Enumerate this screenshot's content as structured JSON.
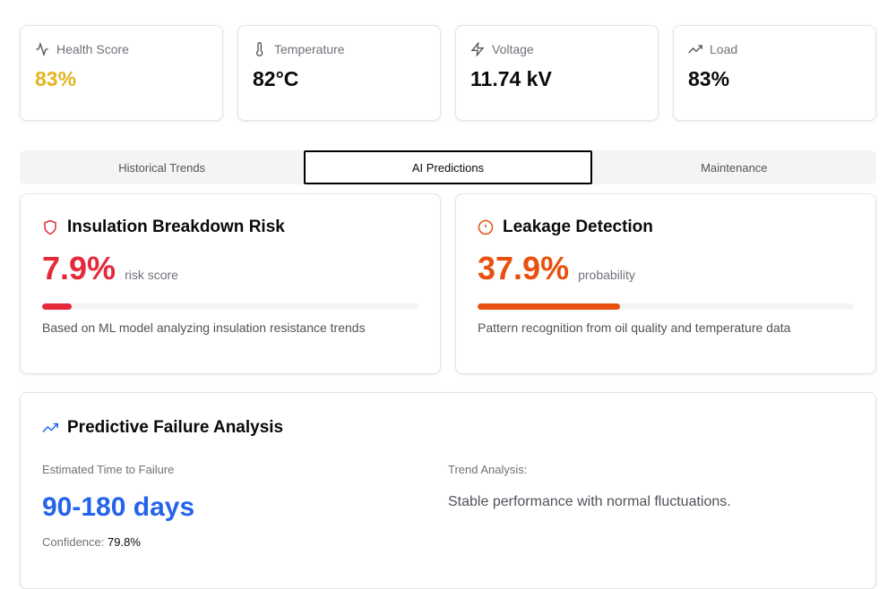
{
  "metrics": [
    {
      "label": "Health Score",
      "value": "83%",
      "icon": "activity-icon",
      "color": "#e5b322"
    },
    {
      "label": "Temperature",
      "value": "82°C",
      "icon": "thermometer-icon",
      "color": "#0a0a0a"
    },
    {
      "label": "Voltage",
      "value": "11.74 kV",
      "icon": "zap-icon",
      "color": "#0a0a0a"
    },
    {
      "label": "Load",
      "value": "83%",
      "icon": "trending-up-icon",
      "color": "#0a0a0a"
    }
  ],
  "tabs": [
    {
      "label": "Historical Trends"
    },
    {
      "label": "AI Predictions",
      "active": true
    },
    {
      "label": "Maintenance"
    }
  ],
  "predictions": [
    {
      "title": "Insulation Breakdown Risk",
      "value": "7.9%",
      "unit": "risk score",
      "percent": 7.9,
      "color": "#e5283a",
      "icon": "shield-icon",
      "desc": "Based on ML model analyzing insulation resistance trends"
    },
    {
      "title": "Leakage Detection",
      "value": "37.9%",
      "unit": "probability",
      "percent": 37.9,
      "color": "#e8500f",
      "icon": "alert-circle-icon",
      "desc": "Pattern recognition from oil quality and temperature data"
    }
  ],
  "failure": {
    "title": "Predictive Failure Analysis",
    "ttf_label": "Estimated Time to Failure",
    "ttf_value": "90-180 days",
    "confidence_label": "Confidence:",
    "confidence_value": "79.8%",
    "trend_label": "Trend Analysis:",
    "trend_value": "Stable performance with normal fluctuations.",
    "accent": "#2563eb"
  }
}
